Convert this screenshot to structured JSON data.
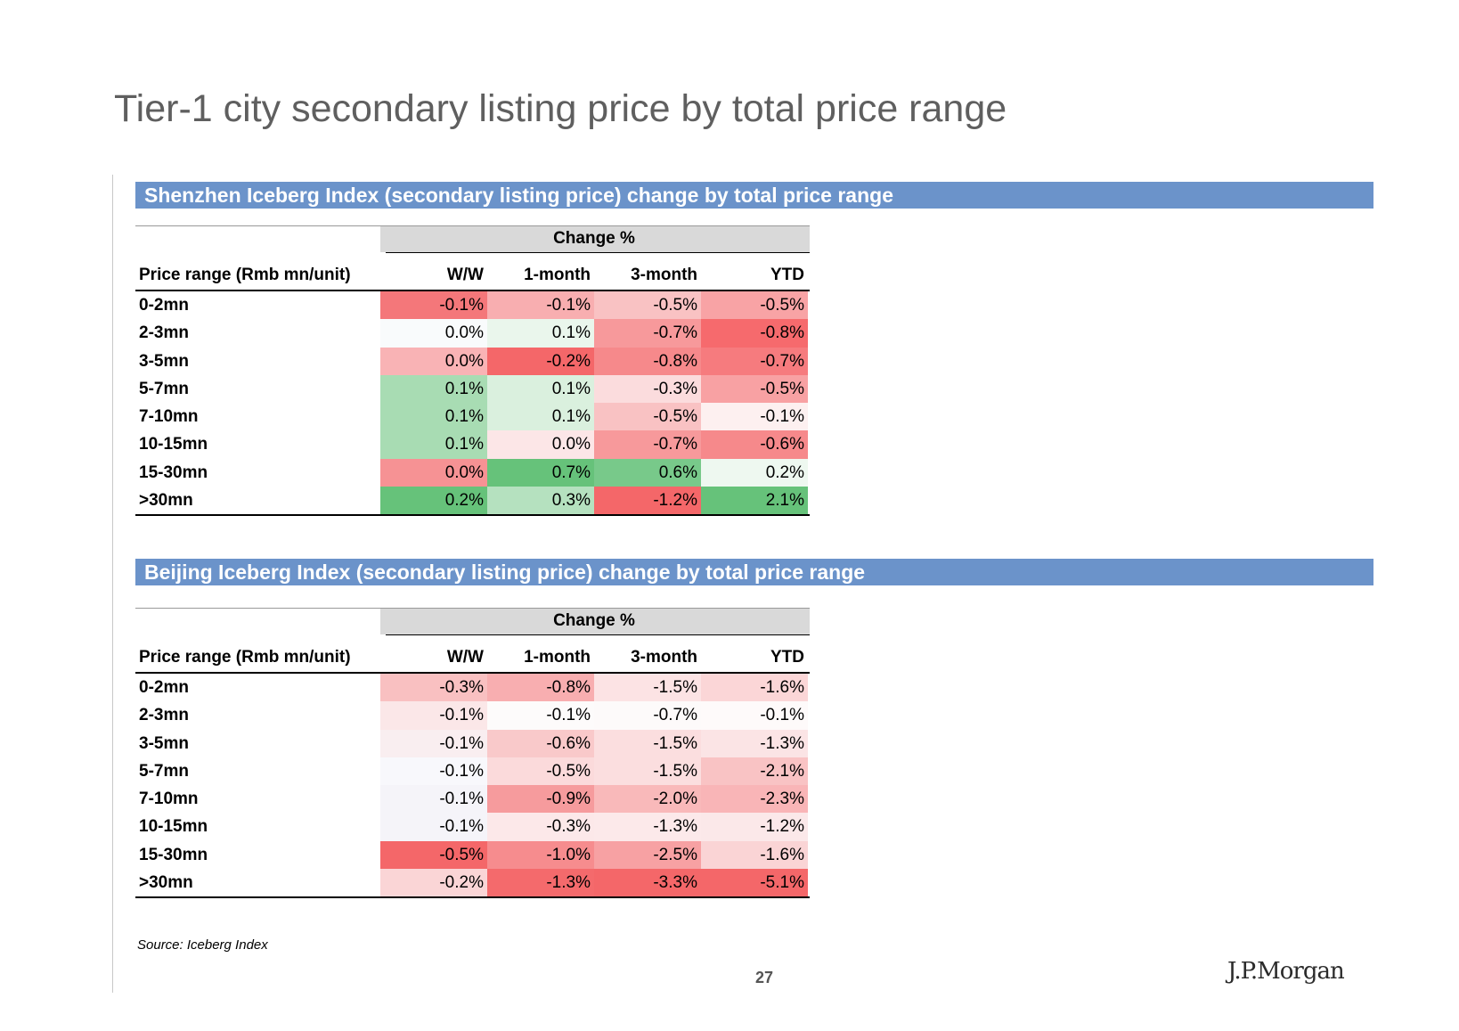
{
  "page": {
    "title": "Tier-1 city secondary listing price by total price range",
    "source": "Source: Iceberg Index",
    "page_number": "27",
    "logo": "J.P.Morgan"
  },
  "tables": [
    {
      "header": "Shenzhen Iceberg Index (secondary listing price) change by total price range",
      "change_label": "Change %",
      "columns": [
        "Price range (Rmb mn/unit)",
        "W/W",
        "1-month",
        "3-month",
        "YTD"
      ],
      "rows": [
        {
          "label": "0-2mn",
          "cells": [
            {
              "v": "-0.1%",
              "bg": "#f4777a"
            },
            {
              "v": "-0.1%",
              "bg": "#f8aeb0"
            },
            {
              "v": "-0.5%",
              "bg": "#f9c2c3"
            },
            {
              "v": "-0.5%",
              "bg": "#f8a3a5"
            }
          ]
        },
        {
          "label": "2-3mn",
          "cells": [
            {
              "v": "0.0%",
              "bg": "#f9fbfc"
            },
            {
              "v": "0.1%",
              "bg": "#eaf6ec"
            },
            {
              "v": "-0.7%",
              "bg": "#f7999b"
            },
            {
              "v": "-0.8%",
              "bg": "#f66a6d"
            }
          ]
        },
        {
          "label": "3-5mn",
          "cells": [
            {
              "v": "0.0%",
              "bg": "#f9b3b5"
            },
            {
              "v": "-0.2%",
              "bg": "#f46769"
            },
            {
              "v": "-0.8%",
              "bg": "#f6898b"
            },
            {
              "v": "-0.7%",
              "bg": "#f67b7e"
            }
          ]
        },
        {
          "label": "5-7mn",
          "cells": [
            {
              "v": "0.1%",
              "bg": "#a8dcb3"
            },
            {
              "v": "0.1%",
              "bg": "#daf0de"
            },
            {
              "v": "-0.3%",
              "bg": "#fbdcdd"
            },
            {
              "v": "-0.5%",
              "bg": "#f8a1a3"
            }
          ]
        },
        {
          "label": "7-10mn",
          "cells": [
            {
              "v": "0.1%",
              "bg": "#a8dcb3"
            },
            {
              "v": "0.1%",
              "bg": "#daf0de"
            },
            {
              "v": "-0.5%",
              "bg": "#f9c2c3"
            },
            {
              "v": "-0.1%",
              "bg": "#fdf0f0"
            }
          ]
        },
        {
          "label": "10-15mn",
          "cells": [
            {
              "v": "0.1%",
              "bg": "#a8dcb3"
            },
            {
              "v": "0.0%",
              "bg": "#fce6e7"
            },
            {
              "v": "-0.7%",
              "bg": "#f7999b"
            },
            {
              "v": "-0.6%",
              "bg": "#f6898b"
            }
          ]
        },
        {
          "label": "15-30mn",
          "cells": [
            {
              "v": "0.0%",
              "bg": "#f69294"
            },
            {
              "v": "0.7%",
              "bg": "#66c27a"
            },
            {
              "v": "0.6%",
              "bg": "#78c98a"
            },
            {
              "v": "0.2%",
              "bg": "#eef8f0"
            }
          ]
        },
        {
          "label": ">30mn",
          "cells": [
            {
              "v": "0.2%",
              "bg": "#66c27a"
            },
            {
              "v": "0.3%",
              "bg": "#b5e1bf"
            },
            {
              "v": "-1.2%",
              "bg": "#f46769"
            },
            {
              "v": "2.1%",
              "bg": "#66c27a"
            }
          ]
        }
      ]
    },
    {
      "header": "Beijing Iceberg Index (secondary listing price) change by total price range",
      "change_label": "Change %",
      "columns": [
        "Price range (Rmb mn/unit)",
        "W/W",
        "1-month",
        "3-month",
        "YTD"
      ],
      "rows": [
        {
          "label": "0-2mn",
          "cells": [
            {
              "v": "-0.3%",
              "bg": "#f9c0c1"
            },
            {
              "v": "-0.8%",
              "bg": "#f8aeb0"
            },
            {
              "v": "-1.5%",
              "bg": "#fce3e4"
            },
            {
              "v": "-1.6%",
              "bg": "#fbd6d7"
            }
          ]
        },
        {
          "label": "2-3mn",
          "cells": [
            {
              "v": "-0.1%",
              "bg": "#fbe7e8"
            },
            {
              "v": "-0.1%",
              "bg": "#fdfbfb"
            },
            {
              "v": "-0.7%",
              "bg": "#fdfafa"
            },
            {
              "v": "-0.1%",
              "bg": "#fefafa"
            }
          ]
        },
        {
          "label": "3-5mn",
          "cells": [
            {
              "v": "-0.1%",
              "bg": "#f9eef0"
            },
            {
              "v": "-0.6%",
              "bg": "#f9c9ca"
            },
            {
              "v": "-1.5%",
              "bg": "#fbdedf"
            },
            {
              "v": "-1.3%",
              "bg": "#fbe4e5"
            }
          ]
        },
        {
          "label": "5-7mn",
          "cells": [
            {
              "v": "-0.1%",
              "bg": "#f8f8fc"
            },
            {
              "v": "-0.5%",
              "bg": "#fbdadb"
            },
            {
              "v": "-1.5%",
              "bg": "#fbdedf"
            },
            {
              "v": "-2.1%",
              "bg": "#f9c3c4"
            }
          ]
        },
        {
          "label": "7-10mn",
          "cells": [
            {
              "v": "-0.1%",
              "bg": "#f5f4f9"
            },
            {
              "v": "-0.9%",
              "bg": "#f69b9d"
            },
            {
              "v": "-2.0%",
              "bg": "#f9b9ba"
            },
            {
              "v": "-2.3%",
              "bg": "#f9b5b7"
            }
          ]
        },
        {
          "label": "10-15mn",
          "cells": [
            {
              "v": "-0.1%",
              "bg": "#f5f4f9"
            },
            {
              "v": "-0.3%",
              "bg": "#fce8e9"
            },
            {
              "v": "-1.3%",
              "bg": "#fce9ea"
            },
            {
              "v": "-1.2%",
              "bg": "#fbe8e9"
            }
          ]
        },
        {
          "label": "15-30mn",
          "cells": [
            {
              "v": "-0.5%",
              "bg": "#f46769"
            },
            {
              "v": "-1.0%",
              "bg": "#f68c8e"
            },
            {
              "v": "-2.5%",
              "bg": "#f7a1a3"
            },
            {
              "v": "-1.6%",
              "bg": "#fad4d5"
            }
          ]
        },
        {
          "label": ">30mn",
          "cells": [
            {
              "v": "-0.2%",
              "bg": "#fad5d6"
            },
            {
              "v": "-1.3%",
              "bg": "#f46a6c"
            },
            {
              "v": "-3.3%",
              "bg": "#f46769"
            },
            {
              "v": "-5.1%",
              "bg": "#f46769"
            }
          ]
        }
      ]
    }
  ]
}
